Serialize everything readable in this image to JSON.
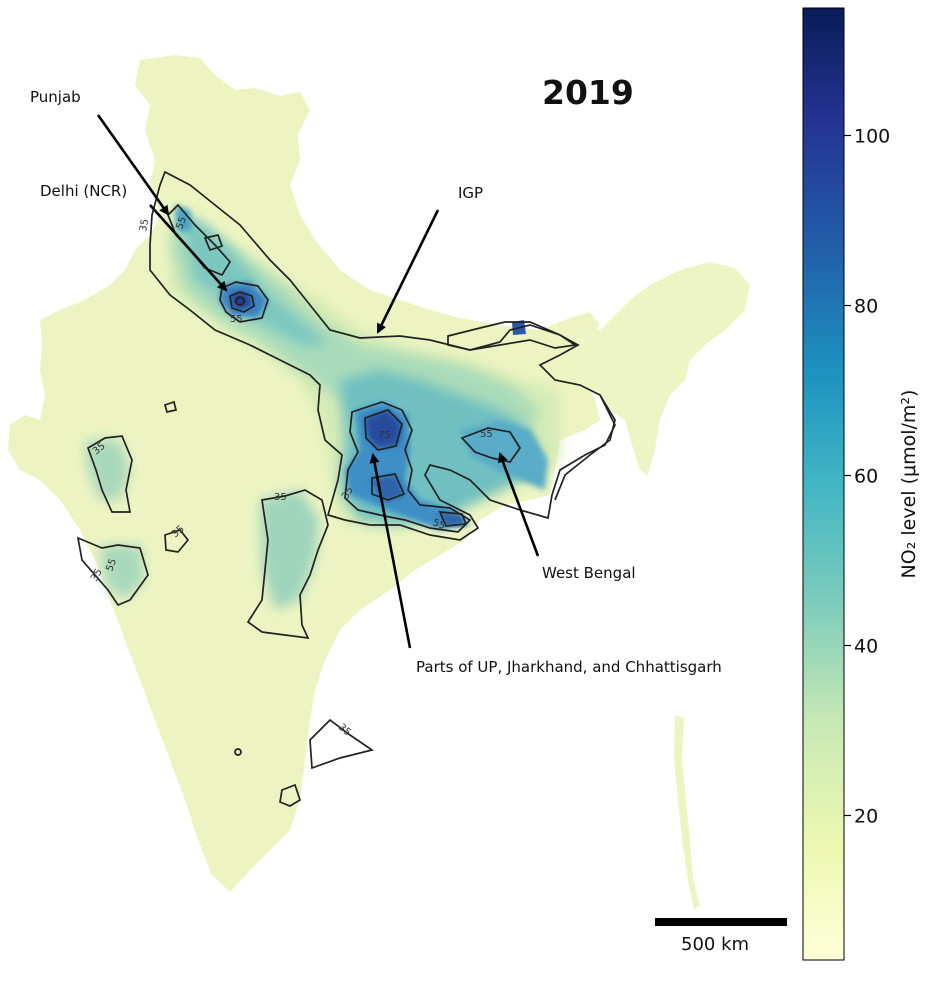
{
  "title": "2019",
  "annotations": {
    "punjab": "Punjab",
    "delhi": "Delhi (NCR)",
    "igp": "IGP",
    "west_bengal": "West Bengal",
    "up_jh_cg": "Parts of UP, Jharkhand, and Chhattisgarh"
  },
  "contour_labels": [
    "35",
    "55",
    "75"
  ],
  "colorbar": {
    "label": "NO₂ level (μmol/m²)",
    "min": 3,
    "max": 115,
    "ticks": [
      "20",
      "40",
      "60",
      "80",
      "100"
    ],
    "tick_values": [
      20,
      40,
      60,
      80,
      100
    ],
    "stops": [
      "#ffffd9",
      "#edf8b1",
      "#c7e9b4",
      "#7fcdbb",
      "#41b6c4",
      "#1d91c0",
      "#225ea8",
      "#253494",
      "#081d58"
    ]
  },
  "scale_bar": {
    "label": "500 km"
  },
  "colors": {
    "land_low": "#edf4bf",
    "land_mid": "#cde9b7",
    "land_high": "#7fcbbd",
    "hotspot": "#3a8fc6",
    "core": "#223a8e",
    "contour": "#222222"
  }
}
